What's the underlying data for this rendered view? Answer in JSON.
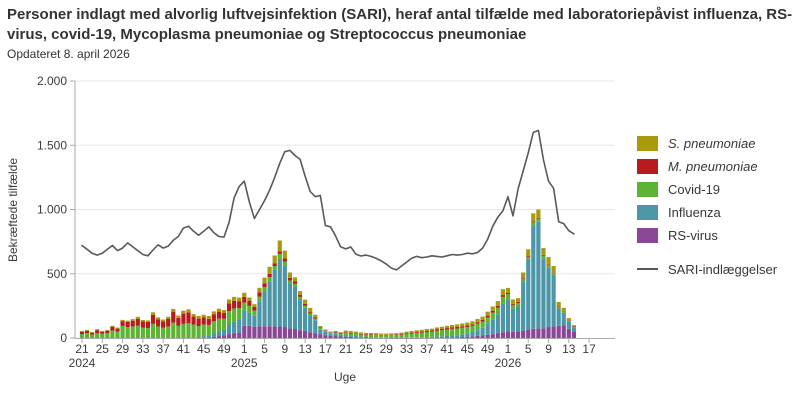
{
  "header": {
    "title": "Personer indlagt med alvorlig luftvejsinfektion (SARI), heraf antal tilfælde med laboratoriepåvist influenza, RS-virus, covid-19, Mycoplasma pneumoniae og Streptococcus pneumoniae",
    "updated": "Opdateret 8. april 2026"
  },
  "legend": {
    "items": [
      {
        "label": "S. pneumoniae",
        "color": "#a89a0c",
        "italic": true,
        "swatch": "box"
      },
      {
        "label": "M. pneumoniae",
        "color": "#b71b1d",
        "italic": true,
        "swatch": "box"
      },
      {
        "label": "Covid-19",
        "color": "#5cb334",
        "italic": false,
        "swatch": "box"
      },
      {
        "label": "Influenza",
        "color": "#4d96a8",
        "italic": false,
        "swatch": "box"
      },
      {
        "label": "RS-virus",
        "color": "#8a4796",
        "italic": false,
        "swatch": "box"
      },
      {
        "label": "SARI-indlæggelser",
        "color": "#595959",
        "italic": false,
        "swatch": "line"
      }
    ]
  },
  "chart_data": {
    "type": "bar",
    "stacked": true,
    "grid": true,
    "legend_position": "right",
    "xlabel": "Uge",
    "ylabel": "Bekræftede tilfælde",
    "ylim": [
      0,
      2000
    ],
    "y_ticks": [
      {
        "value": 0,
        "label": "0"
      },
      {
        "value": 500,
        "label": "500"
      },
      {
        "value": 1000,
        "label": "1.000"
      },
      {
        "value": 1500,
        "label": "1.500"
      },
      {
        "value": 2000,
        "label": "2.000"
      }
    ],
    "x_weeks": {
      "spans": [
        {
          "year": 2024,
          "from": 21,
          "to": 52
        },
        {
          "year": 2025,
          "from": 1,
          "to": 52
        },
        {
          "year": 2026,
          "from": 1,
          "to": 14
        }
      ]
    },
    "x_ticks": [
      {
        "index": 0,
        "label": "21"
      },
      {
        "index": 4,
        "label": "25"
      },
      {
        "index": 8,
        "label": "29"
      },
      {
        "index": 12,
        "label": "33"
      },
      {
        "index": 16,
        "label": "37"
      },
      {
        "index": 20,
        "label": "41"
      },
      {
        "index": 24,
        "label": "45"
      },
      {
        "index": 28,
        "label": "49"
      },
      {
        "index": 32,
        "label": "1"
      },
      {
        "index": 36,
        "label": "5"
      },
      {
        "index": 40,
        "label": "9"
      },
      {
        "index": 44,
        "label": "13"
      },
      {
        "index": 48,
        "label": "17"
      },
      {
        "index": 52,
        "label": "21"
      },
      {
        "index": 56,
        "label": "25"
      },
      {
        "index": 60,
        "label": "29"
      },
      {
        "index": 64,
        "label": "33"
      },
      {
        "index": 68,
        "label": "37"
      },
      {
        "index": 72,
        "label": "41"
      },
      {
        "index": 76,
        "label": "45"
      },
      {
        "index": 80,
        "label": "49"
      },
      {
        "index": 84,
        "label": "1"
      },
      {
        "index": 88,
        "label": "5"
      },
      {
        "index": 92,
        "label": "9"
      },
      {
        "index": 96,
        "label": "13"
      },
      {
        "index": 100,
        "label": "17"
      }
    ],
    "year_labels": [
      {
        "index": 0,
        "label": "2024"
      },
      {
        "index": 32,
        "label": "2025"
      },
      {
        "index": 84,
        "label": "2026"
      }
    ],
    "series": [
      {
        "name": "RS-virus",
        "color": "#8a4796",
        "values": [
          0,
          0,
          0,
          0,
          0,
          0,
          0,
          0,
          0,
          0,
          0,
          0,
          0,
          0,
          0,
          0,
          0,
          0,
          0,
          0,
          0,
          0,
          0,
          0,
          3,
          5,
          10,
          15,
          20,
          30,
          35,
          42,
          95,
          95,
          88,
          90,
          92,
          92,
          90,
          90,
          85,
          75,
          70,
          60,
          55,
          45,
          38,
          30,
          22,
          18,
          15,
          12,
          10,
          8,
          6,
          5,
          4,
          3,
          2,
          2,
          2,
          1,
          1,
          1,
          1,
          1,
          1,
          2,
          2,
          2,
          3,
          3,
          4,
          5,
          6,
          8,
          10,
          13,
          16,
          20,
          25,
          30,
          35,
          45,
          50,
          48,
          50,
          55,
          62,
          72,
          75,
          75,
          85,
          90,
          95,
          100,
          72,
          52
        ]
      },
      {
        "name": "Influenza",
        "color": "#4d96a8",
        "values": [
          0,
          0,
          0,
          0,
          0,
          0,
          0,
          0,
          0,
          0,
          0,
          0,
          0,
          0,
          0,
          0,
          0,
          0,
          0,
          0,
          0,
          0,
          5,
          8,
          12,
          15,
          25,
          35,
          45,
          75,
          95,
          105,
          120,
          100,
          85,
          195,
          270,
          350,
          440,
          525,
          480,
          345,
          330,
          240,
          180,
          130,
          100,
          38,
          25,
          15,
          18,
          14,
          16,
          12,
          10,
          8,
          6,
          5,
          4,
          4,
          3,
          3,
          3,
          3,
          4,
          4,
          5,
          5,
          6,
          7,
          8,
          10,
          12,
          14,
          16,
          20,
          26,
          34,
          45,
          60,
          85,
          115,
          150,
          220,
          250,
          180,
          195,
          380,
          545,
          800,
          830,
          545,
          465,
          400,
          135,
          95,
          55,
          32
        ]
      },
      {
        "name": "Covid-19",
        "color": "#5cb334",
        "values": [
          31,
          39,
          27,
          37,
          35,
          37,
          58,
          50,
          94,
          85,
          90,
          95,
          80,
          78,
          110,
          90,
          80,
          90,
          120,
          95,
          110,
          115,
          100,
          85,
          90,
          82,
          95,
          100,
          85,
          105,
          100,
          85,
          60,
          55,
          40,
          38,
          35,
          32,
          30,
          40,
          30,
          28,
          22,
          20,
          18,
          16,
          14,
          12,
          10,
          8,
          10,
          9,
          14,
          15,
          16,
          15,
          14,
          15,
          16,
          15,
          16,
          18,
          20,
          22,
          26,
          30,
          32,
          35,
          38,
          40,
          45,
          48,
          50,
          52,
          52,
          52,
          50,
          48,
          50,
          48,
          50,
          52,
          52,
          55,
          40,
          30,
          28,
          25,
          25,
          28,
          25,
          22,
          20,
          18,
          12,
          10,
          8,
          5
        ]
      },
      {
        "name": "M. pneumoniae",
        "color": "#b71b1d",
        "values": [
          16,
          16,
          13,
          24,
          12,
          18,
          29,
          23,
          37,
          40,
          45,
          55,
          48,
          47,
          70,
          55,
          50,
          58,
          85,
          62,
          80,
          85,
          62,
          58,
          55,
          48,
          55,
          55,
          45,
          60,
          60,
          55,
          45,
          38,
          28,
          32,
          28,
          25,
          20,
          18,
          24,
          20,
          20,
          15,
          12,
          10,
          8,
          5,
          4,
          4,
          4,
          4,
          5,
          5,
          4,
          4,
          4,
          4,
          4,
          4,
          4,
          4,
          4,
          5,
          6,
          7,
          8,
          8,
          9,
          9,
          10,
          10,
          11,
          11,
          12,
          12,
          12,
          12,
          12,
          12,
          14,
          14,
          14,
          14,
          10,
          8,
          7,
          6,
          6,
          6,
          5,
          5,
          5,
          4,
          3,
          2,
          2,
          1
        ]
      },
      {
        "name": "S. pneumoniae",
        "color": "#a89a0c",
        "values": [
          8,
          8,
          8,
          8,
          8,
          8,
          8,
          8,
          10,
          10,
          12,
          15,
          12,
          12,
          20,
          15,
          14,
          17,
          21,
          18,
          23,
          23,
          19,
          20,
          21,
          21,
          22,
          23,
          23,
          30,
          30,
          28,
          32,
          27,
          22,
          36,
          45,
          55,
          62,
          86,
          61,
          42,
          30,
          30,
          34,
          33,
          21,
          8,
          5,
          5,
          8,
          6,
          13,
          15,
          14,
          12,
          12,
          12,
          12,
          10,
          10,
          10,
          10,
          11,
          12,
          13,
          14,
          14,
          15,
          15,
          16,
          17,
          18,
          19,
          20,
          21,
          22,
          23,
          25,
          26,
          31,
          34,
          36,
          46,
          40,
          34,
          30,
          44,
          52,
          64,
          65,
          53,
          55,
          48,
          35,
          28,
          18,
          10
        ]
      }
    ],
    "line_series": {
      "name": "SARI-indlæggelser",
      "color": "#595959",
      "values": [
        720,
        690,
        660,
        645,
        660,
        690,
        720,
        680,
        700,
        740,
        710,
        680,
        650,
        640,
        685,
        725,
        700,
        715,
        760,
        790,
        855,
        870,
        830,
        800,
        830,
        865,
        820,
        790,
        785,
        900,
        1090,
        1180,
        1220,
        1060,
        930,
        1000,
        1070,
        1150,
        1250,
        1360,
        1450,
        1460,
        1420,
        1390,
        1260,
        1140,
        1100,
        1110,
        875,
        865,
        795,
        710,
        693,
        708,
        653,
        638,
        645,
        635,
        620,
        600,
        575,
        545,
        530,
        560,
        590,
        620,
        635,
        625,
        630,
        640,
        635,
        630,
        640,
        650,
        645,
        650,
        660,
        655,
        665,
        700,
        770,
        870,
        940,
        990,
        1100,
        950,
        1160,
        1300,
        1440,
        1600,
        1615,
        1385,
        1220,
        1165,
        905,
        890,
        835,
        810
      ]
    }
  }
}
